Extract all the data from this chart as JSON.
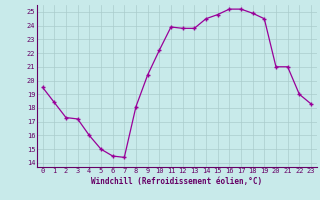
{
  "x": [
    0,
    1,
    2,
    3,
    4,
    5,
    6,
    7,
    8,
    9,
    10,
    11,
    12,
    13,
    14,
    15,
    16,
    17,
    18,
    19,
    20,
    21,
    22,
    23
  ],
  "y": [
    19.5,
    18.4,
    17.3,
    17.2,
    16.0,
    15.0,
    14.5,
    14.4,
    18.1,
    20.4,
    22.2,
    23.9,
    23.8,
    23.8,
    24.5,
    24.8,
    25.2,
    25.2,
    24.9,
    24.5,
    21.0,
    21.0,
    19.0,
    18.3
  ],
  "line_color": "#990099",
  "marker": "+",
  "background_color": "#c8eaea",
  "grid_color": "#aacccc",
  "xlabel": "Windchill (Refroidissement éolien,°C)",
  "xlabel_color": "#660066",
  "tick_color": "#660066",
  "axis_color": "#660066",
  "ylim": [
    13.7,
    25.5
  ],
  "xlim": [
    -0.5,
    23.5
  ],
  "yticks": [
    14,
    15,
    16,
    17,
    18,
    19,
    20,
    21,
    22,
    23,
    24,
    25
  ],
  "xticks": [
    0,
    1,
    2,
    3,
    4,
    5,
    6,
    7,
    8,
    9,
    10,
    11,
    12,
    13,
    14,
    15,
    16,
    17,
    18,
    19,
    20,
    21,
    22,
    23
  ],
  "xtick_labels": [
    "0",
    "1",
    "2",
    "3",
    "4",
    "5",
    "6",
    "7",
    "8",
    "9",
    "10",
    "11",
    "12",
    "13",
    "14",
    "15",
    "16",
    "17",
    "18",
    "19",
    "20",
    "21",
    "22",
    "23"
  ],
  "ytick_labels": [
    "14",
    "15",
    "16",
    "17",
    "18",
    "19",
    "20",
    "21",
    "22",
    "23",
    "24",
    "25"
  ],
  "tick_fontsize": 5.0,
  "xlabel_fontsize": 5.5
}
